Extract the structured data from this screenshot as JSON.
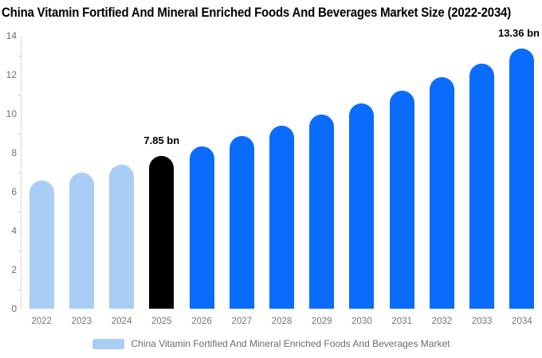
{
  "title": "China Vitamin Fortified And Mineral Enriched Foods And Beverages Market Size (2022-2034)",
  "legend": {
    "label": "China Vitamin Fortified And Mineral Enriched Foods And Beverages Market",
    "swatch_color": "#a8cdf7"
  },
  "colors": {
    "historical_bar": "#a8cdf7",
    "base_year_bar": "#000000",
    "forecast_bar": "#0a6cfd",
    "axis_line": "#d9d9d9",
    "tick": "#cfcfcf",
    "y_label_text": "#6f6f6f",
    "x_label_text": "#757575",
    "legend_text": "#6b6b6b",
    "title_text": "#000000"
  },
  "chart_data": {
    "type": "bar",
    "title": "China Vitamin Fortified And Mineral Enriched Foods And Beverages Market Size (2022-2034)",
    "xlabel": "",
    "ylabel": "",
    "unit": "bn",
    "categories": [
      "2022",
      "2023",
      "2024",
      "2025",
      "2026",
      "2027",
      "2028",
      "2029",
      "2030",
      "2031",
      "2032",
      "2033",
      "2034"
    ],
    "values": [
      6.58,
      6.98,
      7.4,
      7.85,
      8.33,
      8.84,
      9.37,
      9.94,
      10.55,
      11.19,
      11.87,
      12.59,
      13.36
    ],
    "bar_colors": [
      "#a8cdf7",
      "#a8cdf7",
      "#a8cdf7",
      "#000000",
      "#0a6cfd",
      "#0a6cfd",
      "#0a6cfd",
      "#0a6cfd",
      "#0a6cfd",
      "#0a6cfd",
      "#0a6cfd",
      "#0a6cfd",
      "#0a6cfd"
    ],
    "annotations": [
      {
        "category": "2025",
        "text": "7.85 bn"
      },
      {
        "category": "2034",
        "text": "13.36 bn"
      }
    ],
    "ylim": [
      0,
      14
    ],
    "y_ticks": [
      0,
      2,
      4,
      6,
      8,
      10,
      12,
      14
    ],
    "y_minor_ticks": [
      1,
      3,
      5,
      7,
      9,
      11,
      13
    ],
    "grid": false,
    "legend_entries": [
      "China Vitamin Fortified And Mineral Enriched Foods And Beverages Market"
    ],
    "legend_position": "bottom"
  }
}
